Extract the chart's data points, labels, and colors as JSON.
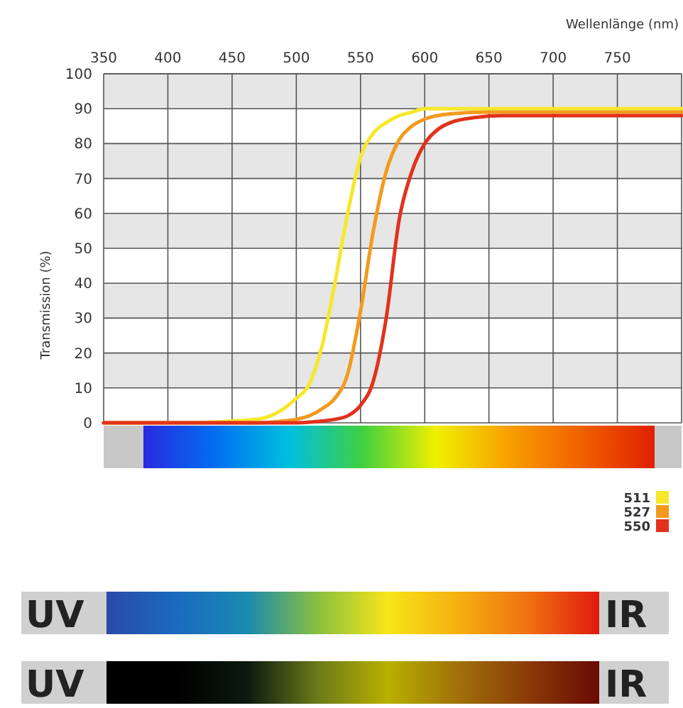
{
  "chart_data": {
    "type": "line",
    "xlabel": "Wellenlänge (nm)",
    "ylabel": "Transmission (%)",
    "xlim": [
      350,
      800
    ],
    "xticks": [
      350,
      400,
      450,
      500,
      550,
      600,
      650,
      700,
      750
    ],
    "ylim": [
      0,
      100
    ],
    "yticks": [
      0,
      10,
      20,
      30,
      40,
      50,
      60,
      70,
      80,
      90,
      100
    ],
    "grid": true,
    "legend": "bottom right",
    "line_style": "solid",
    "series": [
      {
        "name": "511",
        "color": "#f5e82a",
        "x": [
          350,
          420,
          450,
          470,
          480,
          490,
          500,
          510,
          520,
          530,
          540,
          550,
          560,
          570,
          580,
          590,
          600,
          620,
          650,
          700,
          800
        ],
        "values": [
          0,
          0,
          0.5,
          1,
          2,
          4,
          7,
          11,
          22,
          40,
          60,
          76,
          83,
          86,
          88,
          89,
          90,
          90,
          90,
          90,
          90
        ]
      },
      {
        "name": "527",
        "color": "#f39a1e",
        "x": [
          350,
          470,
          490,
          500,
          510,
          520,
          530,
          540,
          550,
          560,
          570,
          580,
          590,
          600,
          620,
          650,
          800
        ],
        "values": [
          0,
          0,
          0.5,
          1,
          2,
          4,
          7,
          14,
          32,
          55,
          72,
          81,
          85,
          87,
          88.5,
          89,
          89
        ]
      },
      {
        "name": "550",
        "color": "#e2321c",
        "x": [
          350,
          500,
          520,
          530,
          540,
          550,
          560,
          570,
          580,
          590,
          600,
          610,
          620,
          640,
          660,
          700,
          800
        ],
        "values": [
          0,
          0,
          0.5,
          1,
          2,
          5,
          12,
          30,
          58,
          72,
          80,
          84,
          86,
          87.5,
          88,
          88,
          88
        ]
      }
    ],
    "annotations": [
      "UV",
      "IR",
      "UV",
      "IR"
    ]
  }
}
